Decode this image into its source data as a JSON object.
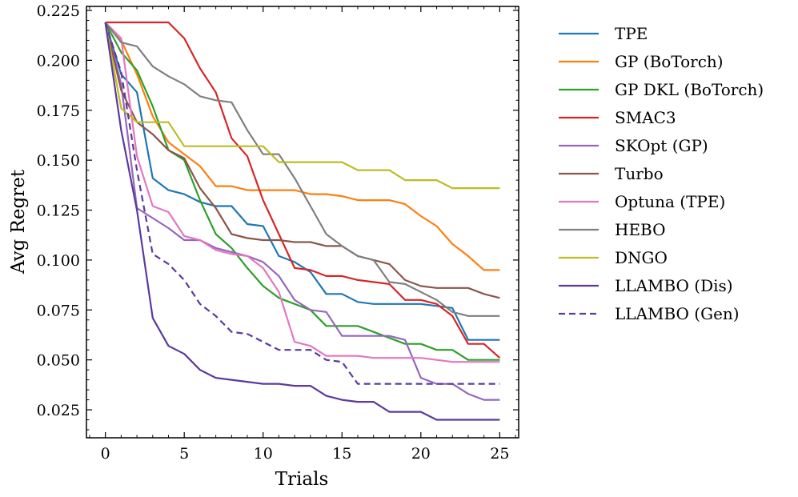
{
  "chart_data": {
    "type": "line",
    "title": "",
    "xlabel": "Trials",
    "ylabel": "Avg Regret",
    "xlim": [
      -1.2,
      26.2
    ],
    "ylim": [
      0.011,
      0.227
    ],
    "xticks": [
      0,
      5,
      10,
      15,
      20,
      25
    ],
    "xtick_labels": [
      "0",
      "5",
      "10",
      "15",
      "20",
      "25"
    ],
    "yticks": [
      0.025,
      0.05,
      0.075,
      0.1,
      0.125,
      0.15,
      0.175,
      0.2,
      0.225
    ],
    "ytick_labels": [
      "0.025",
      "0.050",
      "0.075",
      "0.100",
      "0.125",
      "0.150",
      "0.175",
      "0.200",
      "0.225"
    ],
    "grid": false,
    "legend_position": "outside-right",
    "x": [
      0,
      1,
      2,
      3,
      4,
      5,
      6,
      7,
      8,
      9,
      10,
      11,
      12,
      13,
      14,
      15,
      16,
      17,
      18,
      19,
      20,
      21,
      22,
      23,
      24,
      25
    ],
    "series": [
      {
        "name": "TPE",
        "color": "#1f77b4",
        "dash": "solid",
        "values": [
          0.219,
          0.193,
          0.184,
          0.141,
          0.135,
          0.133,
          0.129,
          0.127,
          0.127,
          0.118,
          0.117,
          0.102,
          0.099,
          0.094,
          0.083,
          0.083,
          0.079,
          0.078,
          0.078,
          0.078,
          0.078,
          0.077,
          0.076,
          0.06,
          0.06,
          0.06
        ]
      },
      {
        "name": "GP (BoTorch)",
        "color": "#ff7f0e",
        "dash": "solid",
        "values": [
          0.219,
          0.21,
          0.193,
          0.172,
          0.159,
          0.153,
          0.147,
          0.137,
          0.137,
          0.135,
          0.135,
          0.135,
          0.135,
          0.133,
          0.133,
          0.132,
          0.13,
          0.13,
          0.13,
          0.128,
          0.122,
          0.117,
          0.108,
          0.102,
          0.095,
          0.095
        ]
      },
      {
        "name": "GP DKL (BoTorch)",
        "color": "#2ca02c",
        "dash": "solid",
        "values": [
          0.219,
          0.204,
          0.195,
          0.177,
          0.155,
          0.15,
          0.13,
          0.113,
          0.106,
          0.096,
          0.087,
          0.081,
          0.078,
          0.075,
          0.067,
          0.067,
          0.067,
          0.064,
          0.061,
          0.058,
          0.058,
          0.055,
          0.055,
          0.05,
          0.05,
          0.05
        ]
      },
      {
        "name": "SMAC3",
        "color": "#d62728",
        "dash": "solid",
        "values": [
          0.219,
          0.219,
          0.219,
          0.219,
          0.219,
          0.211,
          0.196,
          0.184,
          0.161,
          0.152,
          0.13,
          0.113,
          0.096,
          0.095,
          0.092,
          0.092,
          0.09,
          0.089,
          0.088,
          0.08,
          0.08,
          0.078,
          0.072,
          0.058,
          0.058,
          0.051
        ]
      },
      {
        "name": "SKOpt (GP)",
        "color": "#9467bd",
        "dash": "solid",
        "values": [
          0.219,
          0.188,
          0.126,
          0.121,
          0.116,
          0.11,
          0.11,
          0.106,
          0.104,
          0.102,
          0.099,
          0.092,
          0.08,
          0.075,
          0.074,
          0.062,
          0.062,
          0.062,
          0.062,
          0.06,
          0.041,
          0.038,
          0.038,
          0.033,
          0.03,
          0.03
        ]
      },
      {
        "name": "Turbo",
        "color": "#8c564b",
        "dash": "solid",
        "values": [
          0.219,
          0.185,
          0.169,
          0.163,
          0.155,
          0.151,
          0.136,
          0.126,
          0.113,
          0.111,
          0.11,
          0.11,
          0.109,
          0.109,
          0.107,
          0.107,
          0.102,
          0.1,
          0.098,
          0.09,
          0.087,
          0.086,
          0.086,
          0.086,
          0.083,
          0.081
        ]
      },
      {
        "name": "Optuna (TPE)",
        "color": "#e377c2",
        "dash": "solid",
        "values": [
          0.219,
          0.211,
          0.152,
          0.127,
          0.124,
          0.112,
          0.11,
          0.105,
          0.103,
          0.102,
          0.096,
          0.084,
          0.059,
          0.057,
          0.052,
          0.052,
          0.052,
          0.051,
          0.051,
          0.051,
          0.051,
          0.05,
          0.049,
          0.049,
          0.049,
          0.049
        ]
      },
      {
        "name": "HEBO",
        "color": "#7f7f7f",
        "dash": "solid",
        "values": [
          0.219,
          0.209,
          0.207,
          0.197,
          0.192,
          0.188,
          0.182,
          0.18,
          0.179,
          0.165,
          0.153,
          0.153,
          0.141,
          0.127,
          0.113,
          0.107,
          0.102,
          0.1,
          0.089,
          0.088,
          0.084,
          0.08,
          0.074,
          0.072,
          0.072,
          0.072
        ]
      },
      {
        "name": "DNGO",
        "color": "#bcbd22",
        "dash": "solid",
        "values": [
          0.219,
          0.176,
          0.169,
          0.169,
          0.169,
          0.157,
          0.157,
          0.157,
          0.157,
          0.157,
          0.157,
          0.149,
          0.149,
          0.149,
          0.149,
          0.149,
          0.145,
          0.145,
          0.145,
          0.14,
          0.14,
          0.14,
          0.136,
          0.136,
          0.136,
          0.136
        ]
      },
      {
        "name": "LLAMBO (Dis)",
        "color": "#5b3a9e",
        "dash": "solid",
        "values": [
          0.219,
          0.165,
          0.125,
          0.071,
          0.057,
          0.053,
          0.045,
          0.041,
          0.04,
          0.039,
          0.038,
          0.038,
          0.037,
          0.037,
          0.032,
          0.03,
          0.029,
          0.029,
          0.024,
          0.024,
          0.024,
          0.02,
          0.02,
          0.02,
          0.02,
          0.02
        ]
      },
      {
        "name": "LLAMBO (Gen)",
        "color": "#5b3a9e",
        "dash": "dashed",
        "values": [
          0.219,
          0.194,
          0.145,
          0.103,
          0.098,
          0.09,
          0.078,
          0.072,
          0.064,
          0.063,
          0.059,
          0.055,
          0.055,
          0.055,
          0.05,
          0.049,
          0.038,
          0.038,
          0.038,
          0.038,
          0.038,
          0.038,
          0.038,
          0.038,
          0.038,
          0.038
        ]
      }
    ]
  }
}
